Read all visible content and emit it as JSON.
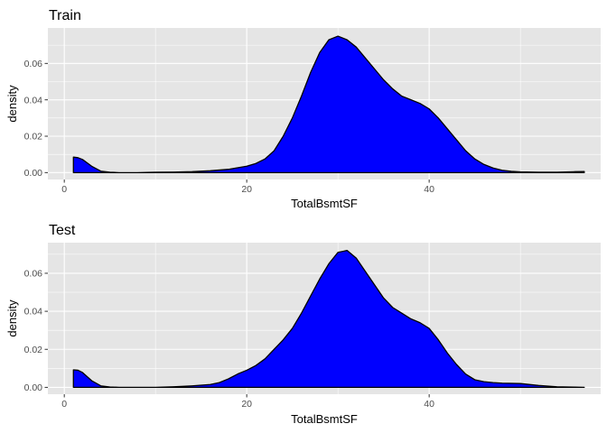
{
  "colors": {
    "panel_bg": "#e5e5e5",
    "grid_major": "#ffffff",
    "fill": "#0000ff",
    "outline": "#000000",
    "tick": "#333333",
    "tick_label": "#4d4d4d"
  },
  "chart_data": [
    {
      "type": "area",
      "title": "Train",
      "xlabel": "TotalBsmtSF",
      "ylabel": "density",
      "xlim": [
        -1.8,
        58.8
      ],
      "ylim": [
        -0.0038,
        0.0795
      ],
      "x_ticks": [
        0,
        20,
        40
      ],
      "y_ticks": [
        0.0,
        0.02,
        0.04,
        0.06
      ],
      "x_tick_labels": [
        "0",
        "20",
        "40"
      ],
      "y_tick_labels": [
        "0.00",
        "0.02",
        "0.04",
        "0.06"
      ],
      "grid": true,
      "x": [
        1,
        1.5,
        2,
        3,
        4,
        5,
        6,
        8,
        10,
        12,
        14,
        16,
        18,
        20,
        21,
        22,
        23,
        24,
        25,
        26,
        27,
        28,
        29,
        30,
        31,
        32,
        33,
        34,
        35,
        36,
        37,
        38,
        39,
        40,
        41,
        42,
        43,
        44,
        45,
        46,
        47,
        48,
        49,
        50,
        52,
        54,
        56,
        57
      ],
      "y": [
        0.0085,
        0.0082,
        0.0072,
        0.0035,
        0.0008,
        0.0002,
        0.0,
        0.0,
        0.0002,
        0.0003,
        0.0005,
        0.001,
        0.0018,
        0.0035,
        0.005,
        0.0075,
        0.012,
        0.02,
        0.03,
        0.042,
        0.055,
        0.066,
        0.073,
        0.075,
        0.073,
        0.069,
        0.063,
        0.057,
        0.051,
        0.046,
        0.042,
        0.04,
        0.038,
        0.035,
        0.03,
        0.024,
        0.018,
        0.012,
        0.0075,
        0.0045,
        0.0025,
        0.0013,
        0.0007,
        0.0004,
        0.0002,
        0.0002,
        0.0005,
        0.0006
      ]
    },
    {
      "type": "area",
      "title": "Test",
      "xlabel": "TotalBsmtSF",
      "ylabel": "density",
      "xlim": [
        -1.8,
        58.8
      ],
      "ylim": [
        -0.0036,
        0.0761
      ],
      "x_ticks": [
        0,
        20,
        40
      ],
      "y_ticks": [
        0.0,
        0.02,
        0.04,
        0.06
      ],
      "x_tick_labels": [
        "0",
        "20",
        "40"
      ],
      "y_tick_labels": [
        "0.00",
        "0.02",
        "0.04",
        "0.06"
      ],
      "grid": true,
      "x": [
        1,
        1.5,
        2,
        3,
        4,
        5,
        6,
        8,
        10,
        12,
        14,
        16,
        17,
        18,
        19,
        20,
        21,
        22,
        23,
        24,
        25,
        26,
        27,
        28,
        29,
        30,
        31,
        32,
        33,
        34,
        35,
        36,
        37,
        38,
        39,
        40,
        41,
        42,
        43,
        44,
        45,
        46,
        47,
        48,
        50,
        52,
        54,
        56,
        57
      ],
      "y": [
        0.0092,
        0.009,
        0.0078,
        0.0035,
        0.0008,
        0.0002,
        0.0,
        0.0,
        0.0,
        0.0003,
        0.0008,
        0.0015,
        0.0025,
        0.0045,
        0.007,
        0.009,
        0.0115,
        0.015,
        0.02,
        0.025,
        0.031,
        0.039,
        0.048,
        0.057,
        0.065,
        0.071,
        0.072,
        0.068,
        0.061,
        0.054,
        0.047,
        0.042,
        0.039,
        0.036,
        0.034,
        0.031,
        0.025,
        0.018,
        0.012,
        0.007,
        0.004,
        0.003,
        0.0025,
        0.0022,
        0.002,
        0.001,
        0.0003,
        0.0001,
        0.0
      ]
    }
  ]
}
